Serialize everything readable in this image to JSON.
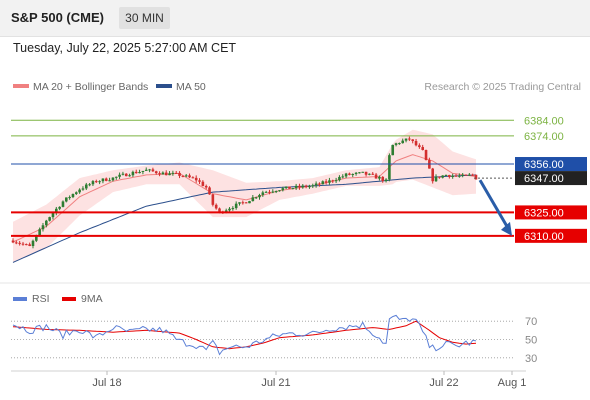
{
  "header": {
    "title": "S&P 500 (CME)",
    "timeframe": "30 MIN"
  },
  "datetime": "Tuesday, July 22, 2025 5:27:00 AM CET",
  "legend": {
    "ma20": "MA 20 + Bollinger Bands",
    "ma50": "MA 50",
    "credit": "Research © 2025 Trading Central"
  },
  "rsi_legend": {
    "rsi": "RSI",
    "ma9": "9MA"
  },
  "colors": {
    "ma20": "#f08080",
    "ma50": "#2b4f8c",
    "bands": "#fde2e2",
    "support": "#e60000",
    "resistance_green": "#7cb342",
    "pivot_blue": "#1f4fa8",
    "candle_up": "#2e7d32",
    "candle_down": "#d32f2f",
    "arrow": "#2a5da8",
    "rsi": "#5b7fd6",
    "rsi_ma": "#e60000"
  },
  "chart_data": {
    "type": "candlestick",
    "x_tick_labels": [
      "Jul 18",
      "Jul 21",
      "Jul 22",
      "Aug 1"
    ],
    "y_range": [
      6283,
      6397
    ],
    "levels": [
      {
        "value": 6384.0,
        "label": "6384.00",
        "style": "resistance"
      },
      {
        "value": 6374.0,
        "label": "6374.00",
        "style": "resistance"
      },
      {
        "value": 6356.0,
        "label": "6356.00",
        "style": "pivot"
      },
      {
        "value": 6347.0,
        "label": "6347.00",
        "style": "last"
      },
      {
        "value": 6325.0,
        "label": "6325.00",
        "style": "support"
      },
      {
        "value": 6310.0,
        "label": "6310.00",
        "style": "support"
      }
    ],
    "price_anchors": [
      [
        0,
        6307
      ],
      [
        5,
        6303
      ],
      [
        10,
        6320
      ],
      [
        15,
        6332
      ],
      [
        20,
        6340
      ],
      [
        25,
        6345
      ],
      [
        30,
        6347
      ],
      [
        35,
        6350
      ],
      [
        40,
        6352
      ],
      [
        45,
        6350
      ],
      [
        50,
        6349
      ],
      [
        55,
        6346
      ],
      [
        58,
        6341
      ],
      [
        60,
        6330
      ],
      [
        62,
        6325
      ],
      [
        65,
        6328
      ],
      [
        70,
        6332
      ],
      [
        75,
        6338
      ],
      [
        80,
        6340
      ],
      [
        85,
        6341
      ],
      [
        90,
        6342
      ],
      [
        95,
        6345
      ],
      [
        100,
        6349
      ],
      [
        105,
        6350
      ],
      [
        110,
        6347
      ],
      [
        112,
        6345
      ],
      [
        113,
        6361
      ],
      [
        114,
        6368
      ],
      [
        116,
        6370
      ],
      [
        119,
        6372
      ],
      [
        123,
        6364
      ],
      [
        125,
        6352
      ],
      [
        126,
        6346
      ],
      [
        128,
        6348
      ],
      [
        130,
        6349
      ],
      [
        135,
        6348
      ],
      [
        138,
        6349
      ],
      [
        139,
        6347
      ]
    ],
    "ma50_anchors": [
      [
        0,
        6293
      ],
      [
        20,
        6312
      ],
      [
        40,
        6329
      ],
      [
        60,
        6338
      ],
      [
        80,
        6341
      ],
      [
        100,
        6343
      ],
      [
        120,
        6347
      ],
      [
        139,
        6349
      ]
    ],
    "ma20_anchors": [
      [
        0,
        6306
      ],
      [
        10,
        6316
      ],
      [
        20,
        6335
      ],
      [
        30,
        6345
      ],
      [
        40,
        6349
      ],
      [
        50,
        6350
      ],
      [
        60,
        6337
      ],
      [
        70,
        6333
      ],
      [
        80,
        6339
      ],
      [
        90,
        6342
      ],
      [
        100,
        6347
      ],
      [
        110,
        6348
      ],
      [
        115,
        6358
      ],
      [
        120,
        6362
      ],
      [
        126,
        6358
      ],
      [
        132,
        6350
      ],
      [
        139,
        6348
      ]
    ],
    "band_half_width": [
      [
        0,
        13
      ],
      [
        10,
        14
      ],
      [
        20,
        12
      ],
      [
        30,
        7
      ],
      [
        40,
        6
      ],
      [
        50,
        7
      ],
      [
        60,
        15
      ],
      [
        70,
        11
      ],
      [
        80,
        6
      ],
      [
        90,
        5
      ],
      [
        100,
        5
      ],
      [
        110,
        6
      ],
      [
        114,
        13
      ],
      [
        120,
        16
      ],
      [
        126,
        17
      ],
      [
        132,
        14
      ],
      [
        139,
        11
      ]
    ],
    "projection": {
      "from_value": 6347.0,
      "to_value": 6310.0
    },
    "rsi": {
      "ticks": [
        70,
        50,
        30
      ],
      "y_range": [
        20,
        80
      ],
      "rsi_anchors": [
        [
          0,
          67
        ],
        [
          5,
          60
        ],
        [
          10,
          64
        ],
        [
          15,
          55
        ],
        [
          20,
          61
        ],
        [
          25,
          52
        ],
        [
          30,
          63
        ],
        [
          35,
          58
        ],
        [
          40,
          61
        ],
        [
          45,
          60
        ],
        [
          50,
          48
        ],
        [
          55,
          44
        ],
        [
          58,
          38
        ],
        [
          60,
          46
        ],
        [
          62,
          36
        ],
        [
          65,
          42
        ],
        [
          70,
          42
        ],
        [
          75,
          49
        ],
        [
          80,
          55
        ],
        [
          85,
          57
        ],
        [
          90,
          56
        ],
        [
          95,
          62
        ],
        [
          100,
          64
        ],
        [
          105,
          66
        ],
        [
          110,
          52
        ],
        [
          112,
          45
        ],
        [
          113,
          72
        ],
        [
          115,
          74
        ],
        [
          117,
          70
        ],
        [
          119,
          73
        ],
        [
          121,
          70
        ],
        [
          123,
          58
        ],
        [
          125,
          43
        ],
        [
          126,
          40
        ],
        [
          128,
          43
        ],
        [
          130,
          45
        ],
        [
          133,
          43
        ],
        [
          136,
          46
        ],
        [
          139,
          47
        ]
      ],
      "ma_anchors": [
        [
          0,
          64
        ],
        [
          10,
          61
        ],
        [
          20,
          60
        ],
        [
          30,
          58
        ],
        [
          40,
          60
        ],
        [
          50,
          57
        ],
        [
          55,
          50
        ],
        [
          60,
          42
        ],
        [
          65,
          40
        ],
        [
          70,
          42
        ],
        [
          75,
          46
        ],
        [
          80,
          52
        ],
        [
          90,
          55
        ],
        [
          100,
          60
        ],
        [
          108,
          63
        ],
        [
          113,
          61
        ],
        [
          118,
          65
        ],
        [
          121,
          70
        ],
        [
          125,
          60
        ],
        [
          128,
          52
        ],
        [
          132,
          47
        ],
        [
          136,
          45
        ],
        [
          139,
          46
        ]
      ]
    }
  }
}
